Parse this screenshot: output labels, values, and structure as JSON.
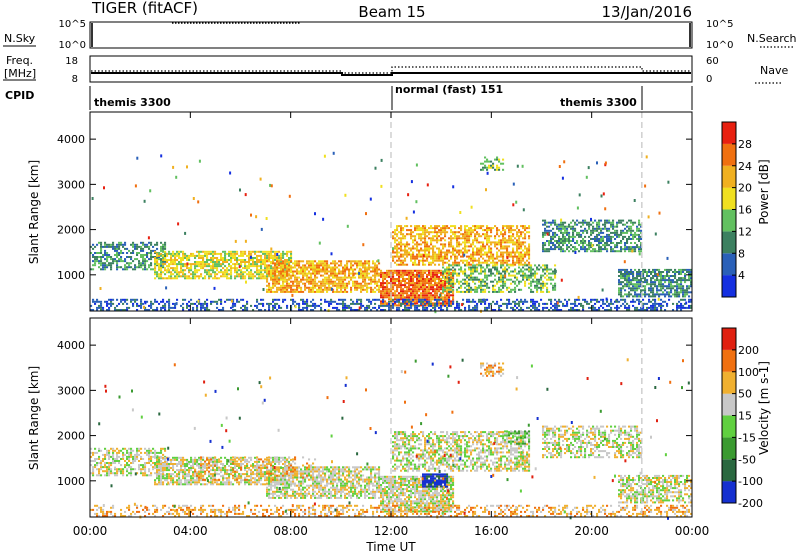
{
  "header": {
    "radar": "TIGER (fitACF)",
    "beam": "Beam 15",
    "date": "13/Jan/2016"
  },
  "nsky_panel": {
    "label": "N.Sky",
    "right_label": "N.Search",
    "ticks_left": [
      "10^5",
      "10^0"
    ],
    "ticks_right": [
      "10^5",
      "10^0"
    ]
  },
  "freq_panel": {
    "label_line1": "Freq.",
    "label_line2": "[MHz]",
    "ticks_left": [
      "18",
      "8"
    ],
    "ticks_right": [
      "60",
      "0"
    ],
    "right_label": "Nave"
  },
  "cpid_panel": {
    "label": "CPID",
    "programs": [
      {
        "name": "themis 3300",
        "start_hour": 0,
        "end_hour": 12
      },
      {
        "name": "normal (fast) 151",
        "start_hour": 12,
        "end_hour": 22
      },
      {
        "name": "themis 3300",
        "start_hour": 22,
        "end_hour": 24
      }
    ]
  },
  "chart_data": [
    {
      "type": "heatmap",
      "name": "Power",
      "ylabel": "Slant Range [km]",
      "colorbar_label": "Power [dB]",
      "x_range_hours": [
        0,
        24
      ],
      "ylim": [
        200,
        4600
      ],
      "yticks": [
        1000,
        2000,
        3000,
        4000
      ],
      "colorbar_ticks": [
        "4",
        "8",
        "12",
        "16",
        "20",
        "24",
        "28"
      ],
      "colors": [
        "#1530e0",
        "#2a60b8",
        "#3c8060",
        "#62c060",
        "#f0e020",
        "#f0b020",
        "#f07010",
        "#e82010"
      ],
      "blobs": [
        {
          "t0": 0.0,
          "t1": 3.0,
          "r0": 1100,
          "r1": 1700,
          "lvl": 2,
          "d": 0.55
        },
        {
          "t0": 2.5,
          "t1": 8.0,
          "r0": 900,
          "r1": 1500,
          "lvl": 4,
          "d": 0.7
        },
        {
          "t0": 7.0,
          "t1": 11.5,
          "r0": 600,
          "r1": 1300,
          "lvl": 5,
          "d": 0.75
        },
        {
          "t0": 11.5,
          "t1": 14.5,
          "r0": 300,
          "r1": 1100,
          "lvl": 6,
          "d": 0.85
        },
        {
          "t0": 12.0,
          "t1": 17.5,
          "r0": 1200,
          "r1": 2100,
          "lvl": 5,
          "d": 0.6
        },
        {
          "t0": 14.0,
          "t1": 18.5,
          "r0": 600,
          "r1": 1200,
          "lvl": 3,
          "d": 0.55
        },
        {
          "t0": 18.0,
          "t1": 22.0,
          "r0": 1500,
          "r1": 2200,
          "lvl": 2,
          "d": 0.6
        },
        {
          "t0": 21.0,
          "t1": 24.0,
          "r0": 500,
          "r1": 1100,
          "lvl": 2,
          "d": 0.7
        },
        {
          "t0": 0.0,
          "t1": 24.0,
          "r0": 200,
          "r1": 450,
          "lvl": 1,
          "d": 0.45
        },
        {
          "t0": 15.5,
          "t1": 16.5,
          "r0": 3300,
          "r1": 3600,
          "lvl": 3,
          "d": 0.5
        }
      ]
    },
    {
      "type": "heatmap",
      "name": "Velocity",
      "ylabel": "Slant Range [km]",
      "colorbar_label": "Velocity [m s-1]",
      "x_range_hours": [
        0,
        24
      ],
      "ylim": [
        200,
        4600
      ],
      "yticks": [
        1000,
        2000,
        3000,
        4000
      ],
      "colorbar_ticks": [
        "200",
        "100",
        "50",
        "15",
        "-15",
        "-50",
        "-100",
        "-200"
      ],
      "colors": [
        "#1530d0",
        "#2a6840",
        "#3a9a30",
        "#60d040",
        "#c8c8c8",
        "#f0b030",
        "#f07010",
        "#e02010"
      ],
      "blobs": [
        {
          "t0": 0.0,
          "t1": 3.0,
          "r0": 1100,
          "r1": 1700,
          "lvl": 4,
          "d": 0.55
        },
        {
          "t0": 2.5,
          "t1": 8.0,
          "r0": 900,
          "r1": 1500,
          "lvl": 4,
          "d": 0.65
        },
        {
          "t0": 7.0,
          "t1": 11.5,
          "r0": 600,
          "r1": 1300,
          "lvl": 4,
          "d": 0.7
        },
        {
          "t0": 11.5,
          "t1": 14.5,
          "r0": 300,
          "r1": 1100,
          "lvl": 4,
          "d": 0.8
        },
        {
          "t0": 13.2,
          "t1": 14.2,
          "r0": 850,
          "r1": 1150,
          "lvl": 0,
          "d": 0.9
        },
        {
          "t0": 12.0,
          "t1": 17.5,
          "r0": 1200,
          "r1": 2100,
          "lvl": 4,
          "d": 0.6
        },
        {
          "t0": 16.5,
          "t1": 17.5,
          "r0": 1800,
          "r1": 2100,
          "lvl": 3,
          "d": 0.6
        },
        {
          "t0": 18.0,
          "t1": 22.0,
          "r0": 1500,
          "r1": 2200,
          "lvl": 4,
          "d": 0.55
        },
        {
          "t0": 21.0,
          "t1": 24.0,
          "r0": 500,
          "r1": 1100,
          "lvl": 4,
          "d": 0.65
        },
        {
          "t0": 0.0,
          "t1": 24.0,
          "r0": 200,
          "r1": 450,
          "lvl": 5,
          "d": 0.4
        },
        {
          "t0": 4.0,
          "t1": 9.0,
          "r0": 1000,
          "r1": 1500,
          "lvl": 5,
          "d": 0.25
        },
        {
          "t0": 15.5,
          "t1": 16.5,
          "r0": 3300,
          "r1": 3600,
          "lvl": 5,
          "d": 0.5
        }
      ]
    }
  ],
  "xaxis": {
    "ticks": [
      "00:00",
      "04:00",
      "08:00",
      "12:00",
      "16:00",
      "20:00",
      "00:00"
    ],
    "label": "Time UT"
  }
}
